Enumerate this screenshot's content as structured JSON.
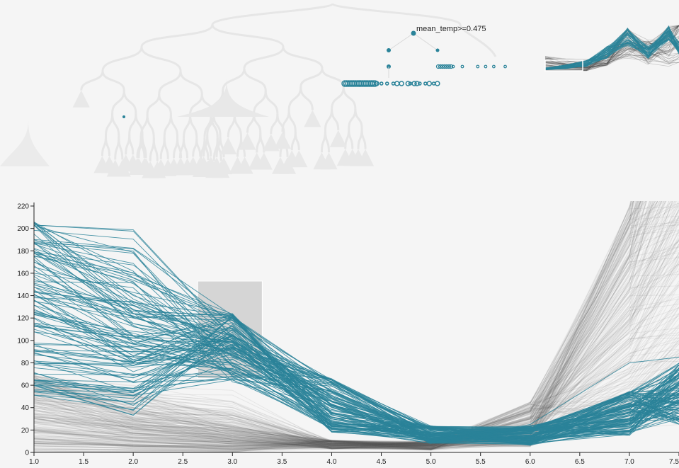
{
  "tree": {
    "split_label": "mean_temp>=0.475"
  },
  "chart_data": {
    "type": "line",
    "title": "",
    "xlabel": "",
    "ylabel": "",
    "xlim": [
      1.0,
      7.5
    ],
    "ylim": [
      0,
      220
    ],
    "x_ticks": [
      "1.0",
      "1.5",
      "2.0",
      "2.5",
      "3.0",
      "3.5",
      "4.0",
      "4.5",
      "5.0",
      "5.5",
      "6.0",
      "6.5",
      "7.0",
      "7.5"
    ],
    "y_ticks": [
      "0",
      "20",
      "40",
      "60",
      "80",
      "100",
      "120",
      "140",
      "160",
      "180",
      "200",
      "220"
    ],
    "x": [
      1,
      2,
      3,
      4,
      5,
      6,
      7,
      7.5
    ],
    "brush": {
      "x_range": [
        2.65,
        3.3
      ],
      "y_range": [
        66,
        153
      ]
    },
    "highlight_color": "#2a8399",
    "context_color": "#555555",
    "series_highlighted_sample": [
      [
        190,
        160,
        120,
        62,
        20,
        10,
        28,
        45
      ],
      [
        150,
        115,
        95,
        40,
        14,
        9,
        22,
        40
      ],
      [
        125,
        100,
        86,
        35,
        12,
        12,
        25,
        50
      ],
      [
        110,
        85,
        78,
        30,
        11,
        15,
        35,
        60
      ],
      [
        95,
        80,
        75,
        28,
        12,
        20,
        30,
        55
      ],
      [
        80,
        70,
        70,
        25,
        10,
        18,
        40,
        70
      ],
      [
        60,
        55,
        68,
        22,
        8,
        25,
        80,
        85
      ],
      [
        205,
        140,
        110,
        55,
        18,
        12,
        30,
        45
      ],
      [
        170,
        135,
        105,
        50,
        15,
        10,
        20,
        35
      ],
      [
        135,
        120,
        100,
        45,
        14,
        8,
        18,
        30
      ]
    ],
    "series_context_sample": [
      [
        30,
        15,
        8,
        5,
        4,
        20,
        60,
        120
      ],
      [
        20,
        10,
        6,
        4,
        5,
        30,
        110,
        210
      ],
      [
        45,
        25,
        12,
        6,
        5,
        15,
        45,
        80
      ],
      [
        60,
        35,
        18,
        8,
        6,
        40,
        150,
        220
      ],
      [
        10,
        6,
        4,
        3,
        4,
        12,
        35,
        70
      ]
    ]
  }
}
